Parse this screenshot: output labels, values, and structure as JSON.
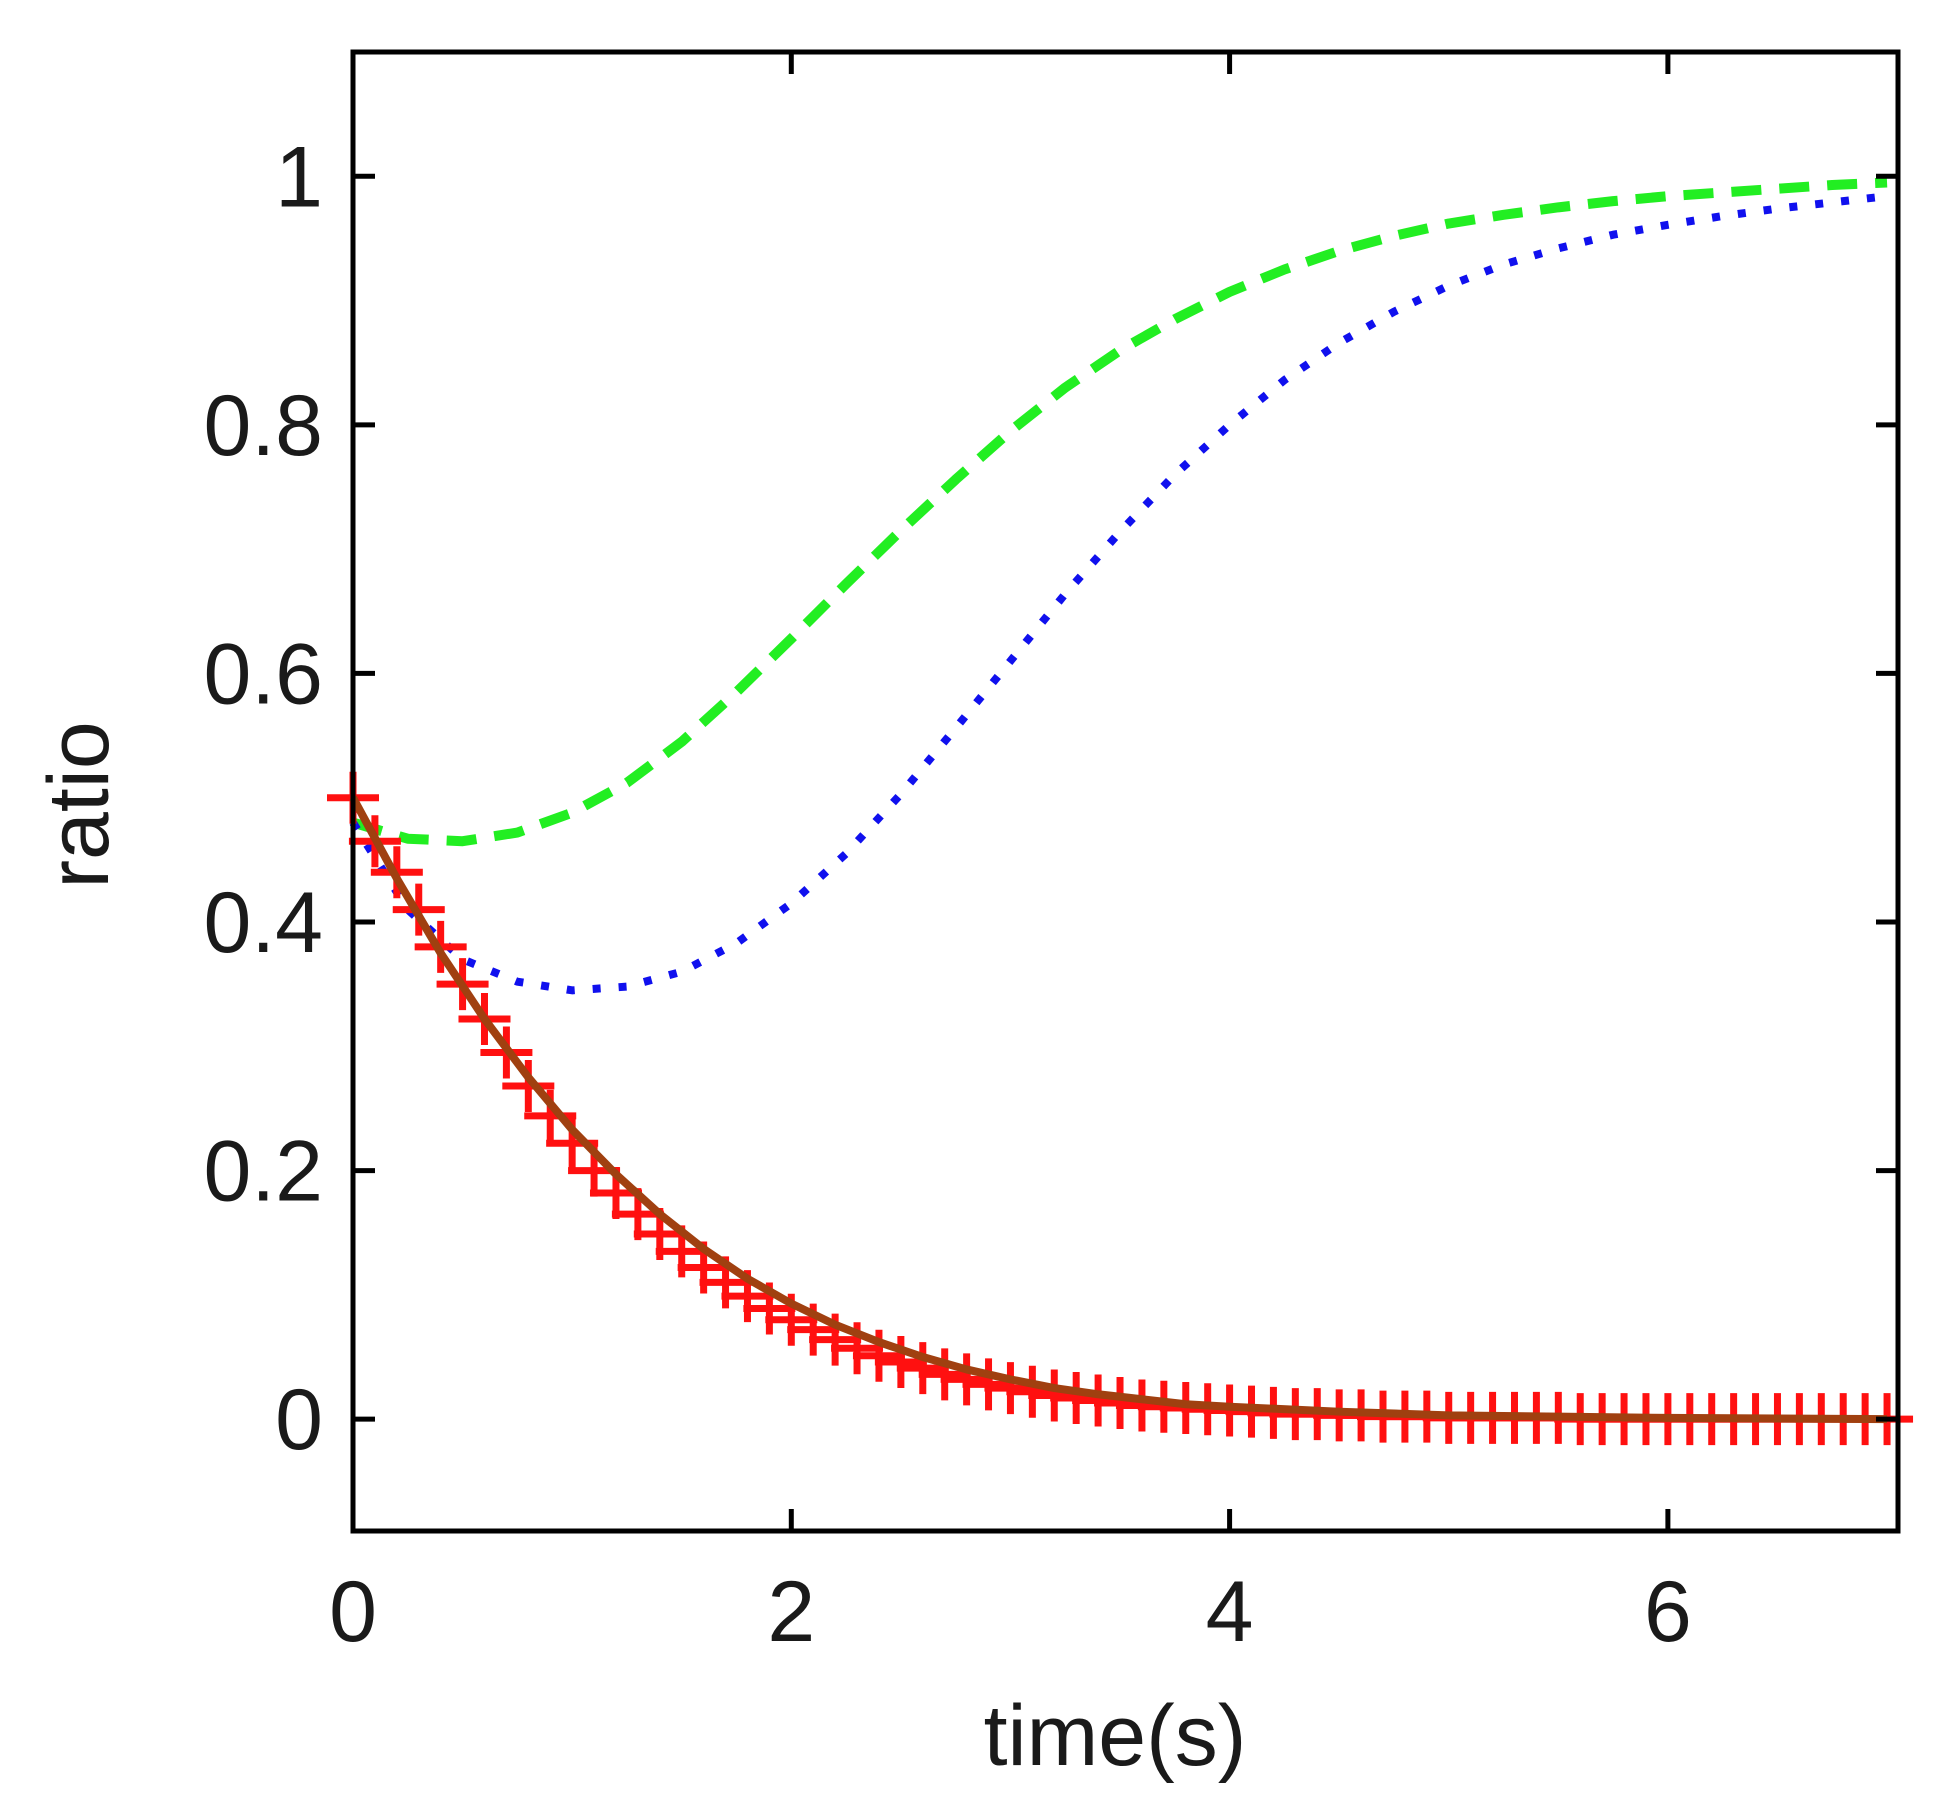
{
  "chart_data": {
    "type": "line",
    "title": "",
    "xlabel": "time(s)",
    "ylabel": "ratio",
    "xlim": [
      0,
      7.05
    ],
    "ylim": [
      -0.09,
      1.1
    ],
    "xticks": [
      0,
      2,
      4,
      6
    ],
    "xtick_labels": [
      "0",
      "2",
      "4",
      "6"
    ],
    "yticks": [
      0,
      0.2,
      0.4,
      0.6,
      0.8,
      1
    ],
    "ytick_labels": [
      "0",
      "0.2",
      "0.4",
      "0.6",
      "0.8",
      "1"
    ],
    "grid": false,
    "legend": "none",
    "series": [
      {
        "name": "green dashed",
        "style": "dashed",
        "color": "#22ee22",
        "x": [
          0,
          0.25,
          0.5,
          0.75,
          1.0,
          1.25,
          1.5,
          1.75,
          2.0,
          2.25,
          2.5,
          2.75,
          3.0,
          3.25,
          3.5,
          3.75,
          4.0,
          4.25,
          4.5,
          4.75,
          5.0,
          5.25,
          5.5,
          5.75,
          6.0,
          6.25,
          6.5,
          6.75,
          7.0
        ],
        "y": [
          0.48,
          0.467,
          0.465,
          0.472,
          0.488,
          0.512,
          0.545,
          0.585,
          0.628,
          0.672,
          0.715,
          0.756,
          0.795,
          0.83,
          0.86,
          0.885,
          0.907,
          0.925,
          0.94,
          0.952,
          0.962,
          0.969,
          0.975,
          0.98,
          0.984,
          0.987,
          0.99,
          0.993,
          0.995
        ]
      },
      {
        "name": "blue dotted",
        "style": "dotted",
        "color": "#1010ee",
        "x": [
          0,
          0.25,
          0.5,
          0.75,
          1.0,
          1.25,
          1.5,
          1.75,
          2.0,
          2.25,
          2.5,
          2.75,
          3.0,
          3.25,
          3.5,
          3.75,
          4.0,
          4.25,
          4.5,
          4.75,
          5.0,
          5.25,
          5.5,
          5.75,
          6.0,
          6.25,
          6.5,
          6.75,
          7.0
        ],
        "y": [
          0.48,
          0.41,
          0.37,
          0.352,
          0.345,
          0.348,
          0.36,
          0.383,
          0.415,
          0.455,
          0.503,
          0.556,
          0.61,
          0.664,
          0.714,
          0.76,
          0.8,
          0.836,
          0.866,
          0.891,
          0.912,
          0.929,
          0.942,
          0.953,
          0.961,
          0.968,
          0.974,
          0.979,
          0.984
        ]
      },
      {
        "name": "red markers",
        "style": "markers",
        "marker": "+",
        "color": "#ff1010",
        "x": [
          0,
          0.1,
          0.2,
          0.3,
          0.4,
          0.5,
          0.6,
          0.7,
          0.8,
          0.9,
          1.0,
          1.1,
          1.2,
          1.3,
          1.4,
          1.5,
          1.6,
          1.7,
          1.8,
          1.9,
          2.0,
          2.1,
          2.2,
          2.3,
          2.4,
          2.5,
          2.6,
          2.7,
          2.8,
          2.9,
          3.0,
          3.1,
          3.2,
          3.3,
          3.4,
          3.5,
          3.6,
          3.7,
          3.8,
          3.9,
          4.0,
          4.1,
          4.2,
          4.3,
          4.4,
          4.5,
          4.6,
          4.7,
          4.8,
          4.9,
          5.0,
          5.1,
          5.2,
          5.3,
          5.4,
          5.5,
          5.6,
          5.7,
          5.8,
          5.9,
          6.0,
          6.1,
          6.2,
          6.3,
          6.4,
          6.5,
          6.6,
          6.7,
          6.8,
          6.9,
          7.0
        ],
        "y": [
          0.5,
          0.465,
          0.44,
          0.41,
          0.38,
          0.35,
          0.322,
          0.295,
          0.268,
          0.244,
          0.222,
          0.2,
          0.182,
          0.165,
          0.149,
          0.135,
          0.122,
          0.11,
          0.099,
          0.089,
          0.08,
          0.072,
          0.064,
          0.057,
          0.051,
          0.046,
          0.041,
          0.036,
          0.032,
          0.028,
          0.025,
          0.022,
          0.019,
          0.017,
          0.015,
          0.013,
          0.011,
          0.01,
          0.009,
          0.008,
          0.007,
          0.006,
          0.005,
          0.004,
          0.004,
          0.003,
          0.003,
          0.002,
          0.002,
          0.002,
          0.001,
          0.001,
          0.001,
          0.001,
          0.001,
          0.001,
          0.0,
          0.0,
          0.0,
          0.0,
          0.0,
          0.0,
          0.0,
          0.0,
          0.0,
          0.0,
          0.0,
          0.0,
          0.0,
          0.0,
          0.0
        ]
      },
      {
        "name": "brown solid",
        "style": "solid",
        "color": "#a04010",
        "x": [
          0,
          0.2,
          0.4,
          0.6,
          0.8,
          1.0,
          1.2,
          1.4,
          1.6,
          1.8,
          2.0,
          2.2,
          2.4,
          2.6,
          2.8,
          3.0,
          3.2,
          3.4,
          3.6,
          3.8,
          4.0,
          4.5,
          5.0,
          5.5,
          6.0,
          6.5,
          7.0
        ],
        "y": [
          0.5,
          0.435,
          0.375,
          0.322,
          0.275,
          0.233,
          0.197,
          0.165,
          0.137,
          0.113,
          0.093,
          0.076,
          0.062,
          0.05,
          0.04,
          0.032,
          0.025,
          0.02,
          0.016,
          0.012,
          0.01,
          0.006,
          0.003,
          0.002,
          0.001,
          0.0005,
          0.0
        ]
      }
    ]
  }
}
